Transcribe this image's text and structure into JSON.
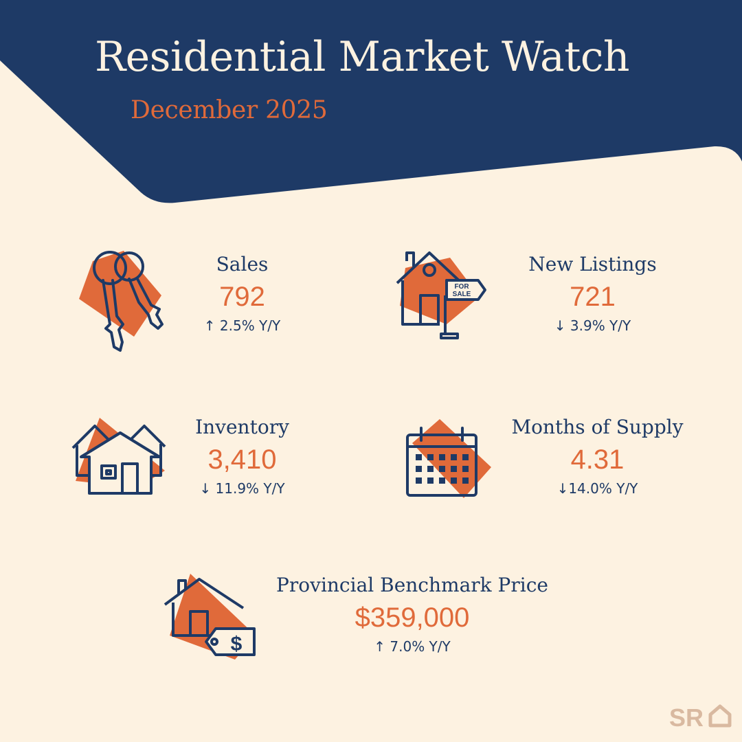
{
  "header": {
    "title": "Residential Market Watch",
    "subtitle": "December 2025"
  },
  "stats": {
    "sales": {
      "label": "Sales",
      "value": "792",
      "change": "↑ 2.5% Y/Y",
      "icon": "keys-icon"
    },
    "new_listings": {
      "label": "New Listings",
      "value": "721",
      "change": "↓ 3.9% Y/Y",
      "icon": "for-sale-house-icon",
      "sign_text": "FOR SALE"
    },
    "inventory": {
      "label": "Inventory",
      "value": "3,410",
      "change": "↓ 11.9% Y/Y",
      "icon": "houses-icon"
    },
    "months_supply": {
      "label": "Months of Supply",
      "value": "4.31",
      "change": "↓14.0% Y/Y",
      "icon": "calendar-icon"
    },
    "benchmark": {
      "label": "Provincial Benchmark Price",
      "value": "$359,000",
      "change": "↑ 7.0% Y/Y",
      "icon": "house-price-tag-icon",
      "tag_symbol": "$"
    }
  },
  "logo": {
    "text": "SR",
    "icon": "house-outline-icon"
  },
  "colors": {
    "navy": "#1E3A66",
    "orange": "#E06A3A",
    "cream": "#FDF2E1",
    "logo": "#D9B9A0"
  }
}
